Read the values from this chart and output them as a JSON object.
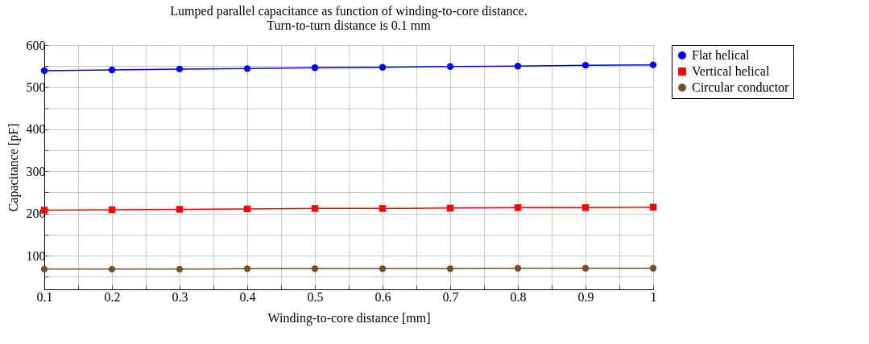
{
  "chart_data": {
    "type": "line",
    "title": "Lumped parallel capacitance as function of winding-to-core distance.",
    "subtitle": "Turn-to-turn distance is 0.1 mm",
    "xlabel": "Winding-to-core distance [mm]",
    "ylabel": "Capacitance [pF]",
    "x": [
      0.1,
      0.2,
      0.3,
      0.4,
      0.5,
      0.6,
      0.7,
      0.8,
      0.9,
      1
    ],
    "series": [
      {
        "name": "Flat helical",
        "color": "#0000ff",
        "marker": "circle",
        "values": [
          539,
          541,
          543,
          544,
          546,
          547,
          549,
          550,
          552,
          553
        ]
      },
      {
        "name": "Vertical helical",
        "color": "#ff0000",
        "marker": "square",
        "values": [
          208,
          209,
          210,
          211,
          212,
          212,
          213,
          214,
          214,
          215
        ]
      },
      {
        "name": "Circular conductor",
        "color": "#7a4f26",
        "marker": "circle",
        "values": [
          68,
          68,
          68,
          69,
          69,
          69,
          69,
          70,
          70,
          70
        ]
      }
    ],
    "xlim": [
      0.1,
      1
    ],
    "ylim": [
      20,
      600
    ],
    "xticks": [
      0.1,
      {
        "value": 0.15,
        "label": null
      },
      0.2,
      {
        "value": 0.25,
        "label": null
      },
      0.3,
      {
        "value": 0.35,
        "label": null
      },
      0.4,
      {
        "value": 0.45,
        "label": null
      },
      0.5,
      {
        "value": 0.55,
        "label": null
      },
      0.6,
      {
        "value": 0.65,
        "label": null
      },
      0.7,
      {
        "value": 0.75,
        "label": null
      },
      0.8,
      {
        "value": 0.85,
        "label": null
      },
      0.9,
      {
        "value": 0.95,
        "label": null
      },
      1
    ],
    "yticks": [
      {
        "value": 50,
        "label": null
      },
      100,
      {
        "value": 150,
        "label": null
      },
      200,
      {
        "value": 250,
        "label": null
      },
      300,
      {
        "value": 350,
        "label": null
      },
      400,
      {
        "value": 450,
        "label": null
      },
      500,
      {
        "value": 550,
        "label": null
      },
      600
    ],
    "grid": true,
    "legend": "top right",
    "line_style": "solid"
  }
}
